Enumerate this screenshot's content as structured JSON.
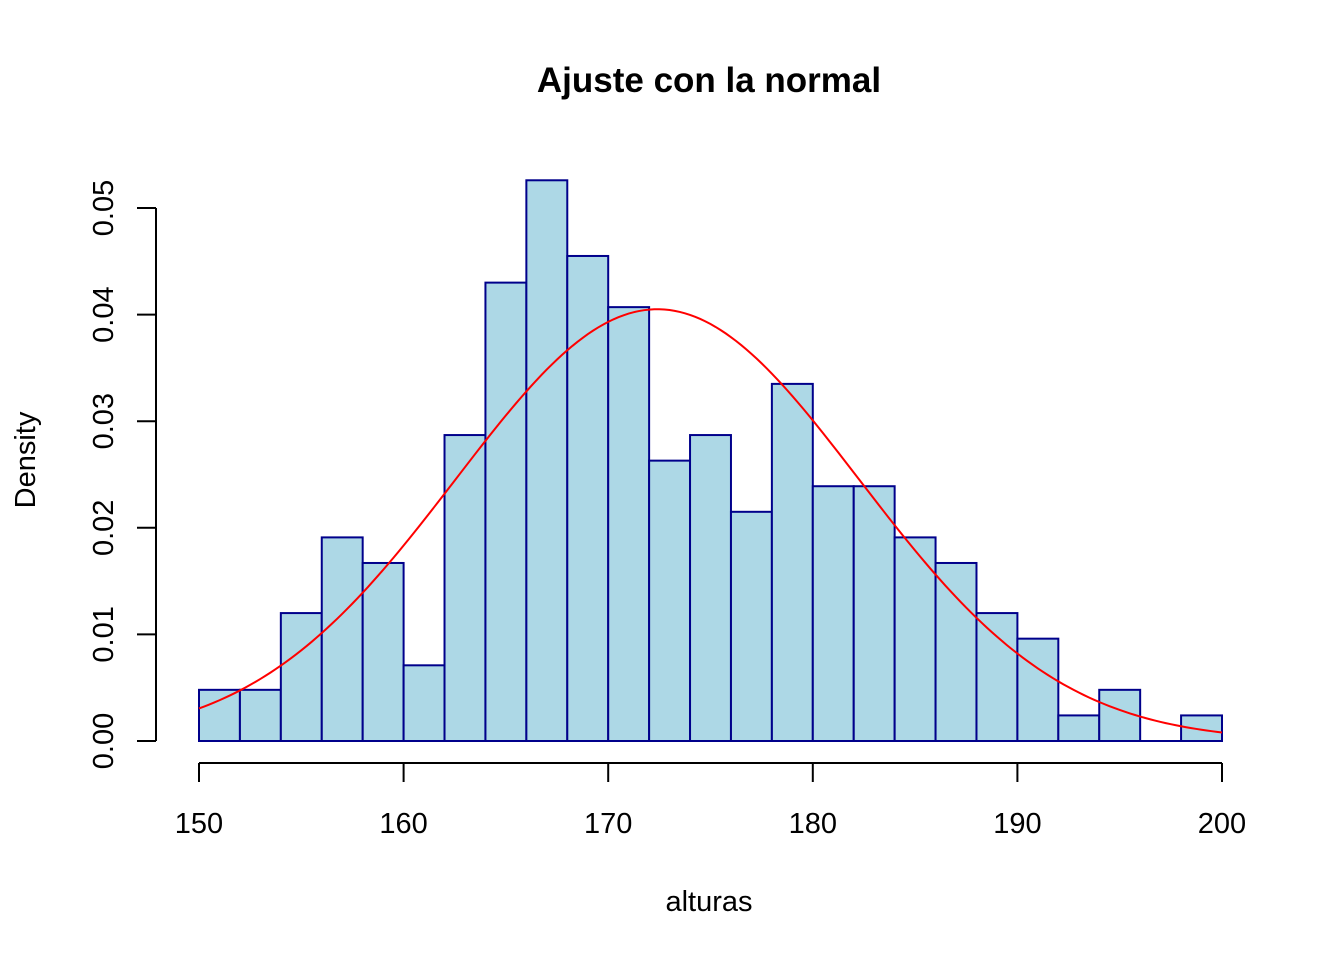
{
  "chart_data": {
    "type": "bar",
    "title": "Ajuste con la normal",
    "xlabel": "alturas",
    "ylabel": "Density",
    "xlim": [
      150,
      200
    ],
    "ylim": [
      0,
      0.05
    ],
    "x_ticks": [
      "150",
      "160",
      "170",
      "180",
      "190",
      "200"
    ],
    "y_ticks": [
      "0.00",
      "0.01",
      "0.02",
      "0.03",
      "0.04",
      "0.05"
    ],
    "bin_width": 2,
    "bins": [
      {
        "x0": 150,
        "x1": 152,
        "density": 0.0048
      },
      {
        "x0": 152,
        "x1": 154,
        "density": 0.0048
      },
      {
        "x0": 154,
        "x1": 156,
        "density": 0.012
      },
      {
        "x0": 156,
        "x1": 158,
        "density": 0.0191
      },
      {
        "x0": 158,
        "x1": 160,
        "density": 0.0167
      },
      {
        "x0": 160,
        "x1": 162,
        "density": 0.0071
      },
      {
        "x0": 162,
        "x1": 164,
        "density": 0.0287
      },
      {
        "x0": 164,
        "x1": 166,
        "density": 0.043
      },
      {
        "x0": 166,
        "x1": 168,
        "density": 0.0526
      },
      {
        "x0": 168,
        "x1": 170,
        "density": 0.0455
      },
      {
        "x0": 170,
        "x1": 172,
        "density": 0.0407
      },
      {
        "x0": 172,
        "x1": 174,
        "density": 0.0263
      },
      {
        "x0": 174,
        "x1": 176,
        "density": 0.0287
      },
      {
        "x0": 176,
        "x1": 178,
        "density": 0.0215
      },
      {
        "x0": 178,
        "x1": 180,
        "density": 0.0335
      },
      {
        "x0": 180,
        "x1": 182,
        "density": 0.0239
      },
      {
        "x0": 182,
        "x1": 184,
        "density": 0.0239
      },
      {
        "x0": 184,
        "x1": 186,
        "density": 0.0191
      },
      {
        "x0": 186,
        "x1": 188,
        "density": 0.0167
      },
      {
        "x0": 188,
        "x1": 190,
        "density": 0.012
      },
      {
        "x0": 190,
        "x1": 192,
        "density": 0.0096
      },
      {
        "x0": 192,
        "x1": 194,
        "density": 0.0024
      },
      {
        "x0": 194,
        "x1": 196,
        "density": 0.0048
      },
      {
        "x0": 196,
        "x1": 198,
        "density": 0
      },
      {
        "x0": 198,
        "x1": 200,
        "density": 0.0024
      }
    ],
    "normal_curve": {
      "mean": 172.4,
      "sd": 9.85
    },
    "grid": false,
    "colors": {
      "bar_fill": "#ADD8E6",
      "bar_border": "#00008B",
      "curve": "#FF0000"
    }
  }
}
